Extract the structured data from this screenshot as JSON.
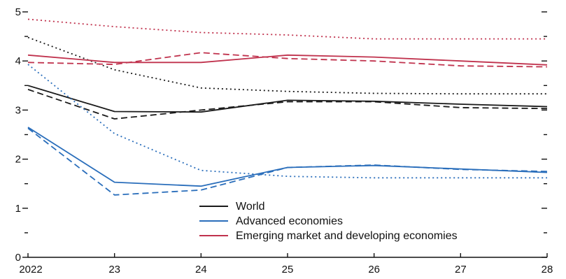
{
  "chart_data": {
    "type": "line",
    "x": [
      "2022",
      "23",
      "24",
      "25",
      "26",
      "27",
      "28"
    ],
    "ylim": [
      0,
      5
    ],
    "yticks": [
      0,
      1,
      2,
      3,
      4,
      5
    ],
    "xlabel": "",
    "ylabel": "",
    "title": "",
    "legend_position": "bottom-right",
    "series": [
      {
        "name": "World",
        "color": "#1a1a1a",
        "style": "solid",
        "values": [
          3.5,
          2.97,
          2.96,
          3.2,
          3.18,
          3.12,
          3.07
        ]
      },
      {
        "name": "",
        "color": "#1a1a1a",
        "style": "dashed",
        "values": [
          3.42,
          2.82,
          3.0,
          3.17,
          3.17,
          3.05,
          3.03
        ]
      },
      {
        "name": "",
        "color": "#1a1a1a",
        "style": "dotted",
        "values": [
          4.48,
          3.82,
          3.45,
          3.38,
          3.34,
          3.33,
          3.33
        ]
      },
      {
        "name": "Advanced economies",
        "color": "#2a6ebb",
        "style": "solid",
        "values": [
          2.65,
          1.53,
          1.45,
          1.83,
          1.87,
          1.8,
          1.73
        ]
      },
      {
        "name": "",
        "color": "#2a6ebb",
        "style": "dashed",
        "values": [
          2.63,
          1.27,
          1.37,
          1.83,
          1.88,
          1.79,
          1.75
        ]
      },
      {
        "name": "",
        "color": "#2a6ebb",
        "style": "dotted",
        "values": [
          3.93,
          2.52,
          1.77,
          1.65,
          1.62,
          1.62,
          1.62
        ]
      },
      {
        "name": "Emerging market and developing economies",
        "color": "#c0324d",
        "style": "solid",
        "values": [
          4.12,
          3.97,
          3.97,
          4.12,
          4.08,
          4.0,
          3.92
        ]
      },
      {
        "name": "",
        "color": "#c0324d",
        "style": "dashed",
        "values": [
          3.97,
          3.93,
          4.17,
          4.05,
          4.0,
          3.9,
          3.88
        ]
      },
      {
        "name": "",
        "color": "#c0324d",
        "style": "dotted",
        "values": [
          4.85,
          4.7,
          4.58,
          4.53,
          4.45,
          4.45,
          4.45
        ]
      }
    ]
  }
}
